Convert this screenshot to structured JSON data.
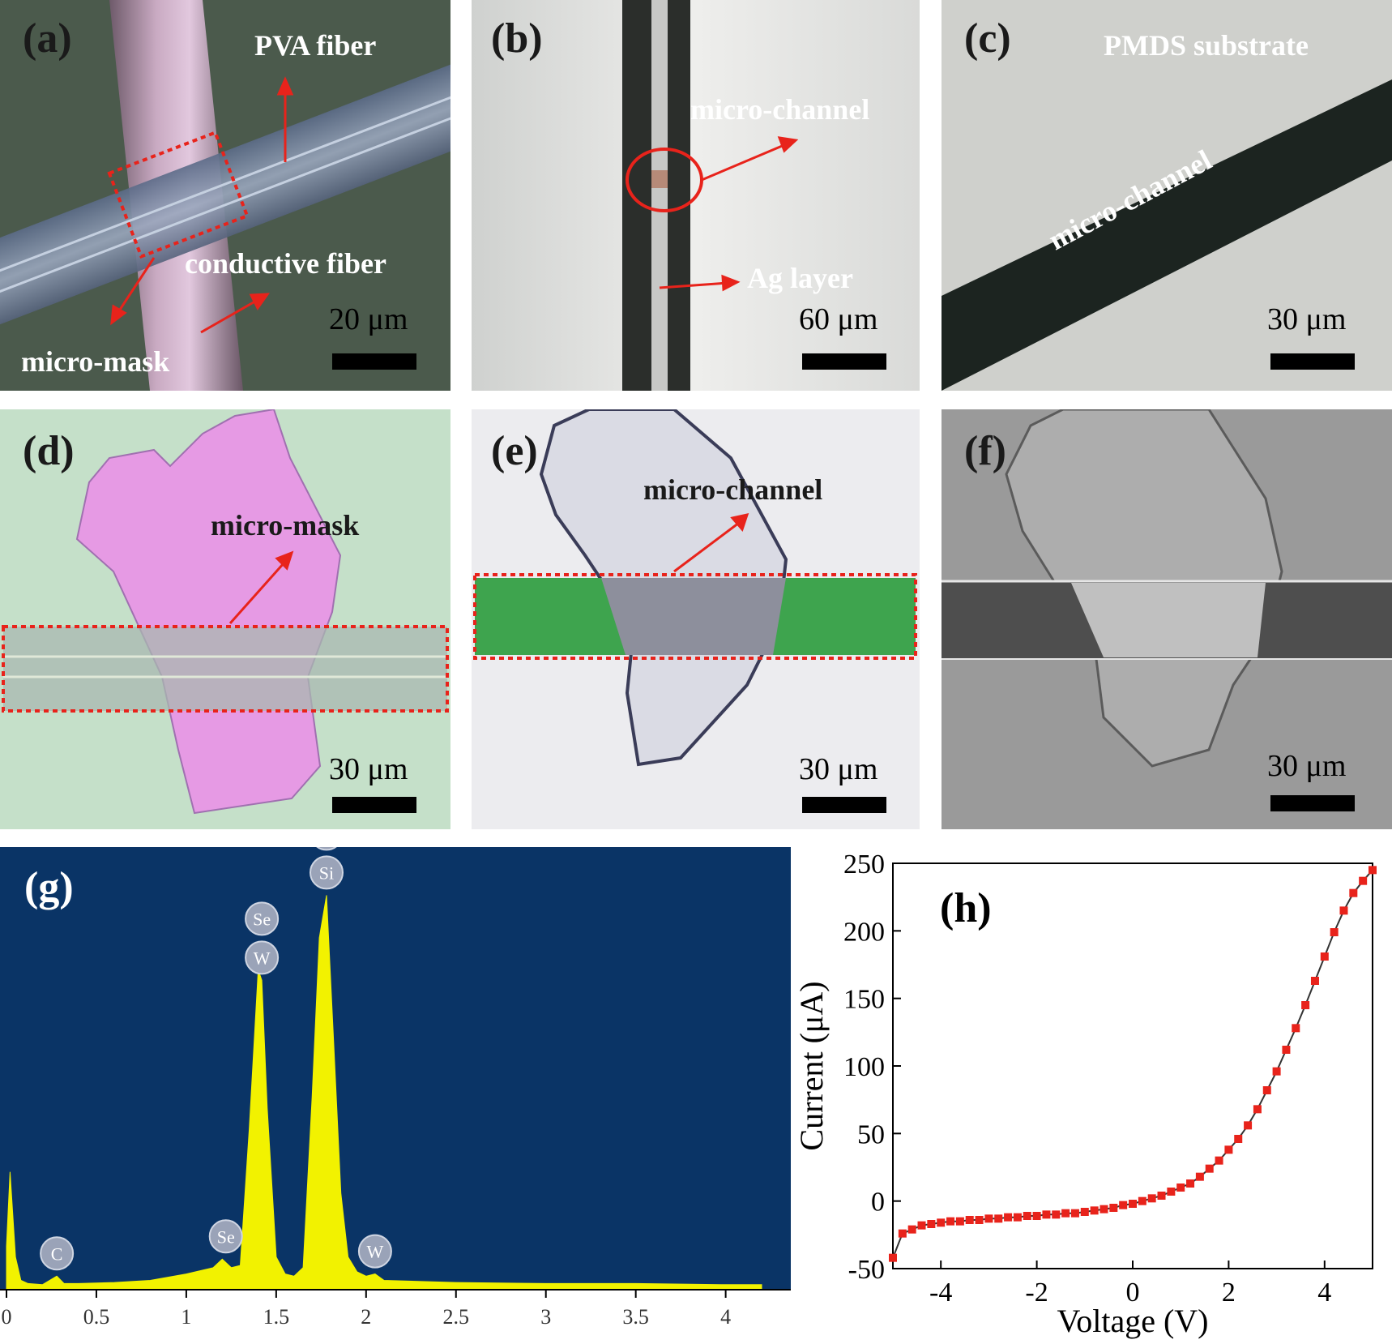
{
  "panels": {
    "a": {
      "label": "(a)",
      "annotations": {
        "pva_fiber": "PVA fiber",
        "conductive_fiber": "conductive fiber",
        "micro_mask": "micro-mask"
      },
      "scale": "20 μm"
    },
    "b": {
      "label": "(b)",
      "annotations": {
        "micro_channel": "micro-channel",
        "ag_layer": "Ag layer"
      },
      "scale": "60 μm"
    },
    "c": {
      "label": "(c)",
      "annotations": {
        "substrate": "PMDS substrate",
        "micro_channel": "micro-channel"
      },
      "scale": "30 μm"
    },
    "d": {
      "label": "(d)",
      "annotations": {
        "micro_mask": "micro-mask"
      },
      "scale": "30 μm"
    },
    "e": {
      "label": "(e)",
      "annotations": {
        "micro_channel": "micro-channel"
      },
      "scale": "30 μm"
    },
    "f": {
      "label": "(f)",
      "scale": "30 μm"
    }
  },
  "colors": {
    "arrow_red": "#e8231b",
    "eds_background": "#0a3466",
    "eds_spectrum": "#f2f200",
    "iv_marker": "#e8231b"
  },
  "chart_data": [
    {
      "panel_label": "(g)",
      "type": "area",
      "xlim": [
        0,
        4.2
      ],
      "x_ticks": [
        "0",
        "0.5",
        "1",
        "1.5",
        "2",
        "2.5",
        "3",
        "3.5",
        "4"
      ],
      "x": [
        0,
        0.02,
        0.05,
        0.08,
        0.12,
        0.2,
        0.28,
        0.32,
        0.4,
        0.6,
        0.8,
        1.0,
        1.15,
        1.2,
        1.25,
        1.3,
        1.35,
        1.4,
        1.42,
        1.45,
        1.5,
        1.55,
        1.6,
        1.65,
        1.7,
        1.74,
        1.78,
        1.82,
        1.86,
        1.9,
        1.95,
        2.0,
        2.05,
        2.1,
        2.5,
        3.0,
        3.5,
        4.0,
        4.2
      ],
      "y": [
        40,
        110,
        30,
        8,
        5,
        4,
        12,
        5,
        5,
        6,
        8,
        14,
        20,
        28,
        20,
        22,
        150,
        300,
        290,
        170,
        30,
        14,
        12,
        20,
        180,
        330,
        370,
        230,
        90,
        30,
        16,
        12,
        14,
        8,
        6,
        5,
        5,
        4,
        4
      ],
      "peak_labels": [
        {
          "x": 0.28,
          "lines": [
            "C"
          ]
        },
        {
          "x": 1.22,
          "lines": [
            "Se"
          ]
        },
        {
          "x": 1.42,
          "lines": [
            "Se",
            "W"
          ]
        },
        {
          "x": 1.78,
          "lines": [
            "W",
            "Si"
          ]
        },
        {
          "x": 2.05,
          "lines": [
            "W"
          ]
        }
      ]
    },
    {
      "panel_label": "(h)",
      "type": "line",
      "xlabel": "Voltage (V)",
      "ylabel": "Current (μA)",
      "xlim": [
        -5,
        5
      ],
      "ylim": [
        -50,
        250
      ],
      "x_ticks": [
        -4,
        -2,
        0,
        2,
        4
      ],
      "y_ticks": [
        -50,
        0,
        50,
        100,
        150,
        200,
        250
      ],
      "x": [
        -5.0,
        -4.8,
        -4.6,
        -4.4,
        -4.2,
        -4.0,
        -3.8,
        -3.6,
        -3.4,
        -3.2,
        -3.0,
        -2.8,
        -2.6,
        -2.4,
        -2.2,
        -2.0,
        -1.8,
        -1.6,
        -1.4,
        -1.2,
        -1.0,
        -0.8,
        -0.6,
        -0.4,
        -0.2,
        0.0,
        0.2,
        0.4,
        0.6,
        0.8,
        1.0,
        1.2,
        1.4,
        1.6,
        1.8,
        2.0,
        2.2,
        2.4,
        2.6,
        2.8,
        3.0,
        3.2,
        3.4,
        3.6,
        3.8,
        4.0,
        4.2,
        4.4,
        4.6,
        4.8,
        5.0
      ],
      "y": [
        -42,
        -24,
        -21,
        -18,
        -17,
        -16,
        -15,
        -15,
        -14,
        -14,
        -13,
        -13,
        -12,
        -12,
        -11,
        -11,
        -10,
        -10,
        -9,
        -9,
        -8,
        -7,
        -6,
        -5,
        -3,
        -2,
        0,
        2,
        4,
        7,
        10,
        13,
        18,
        24,
        30,
        38,
        46,
        56,
        68,
        82,
        96,
        112,
        128,
        145,
        163,
        181,
        199,
        215,
        228,
        237,
        245
      ]
    }
  ]
}
